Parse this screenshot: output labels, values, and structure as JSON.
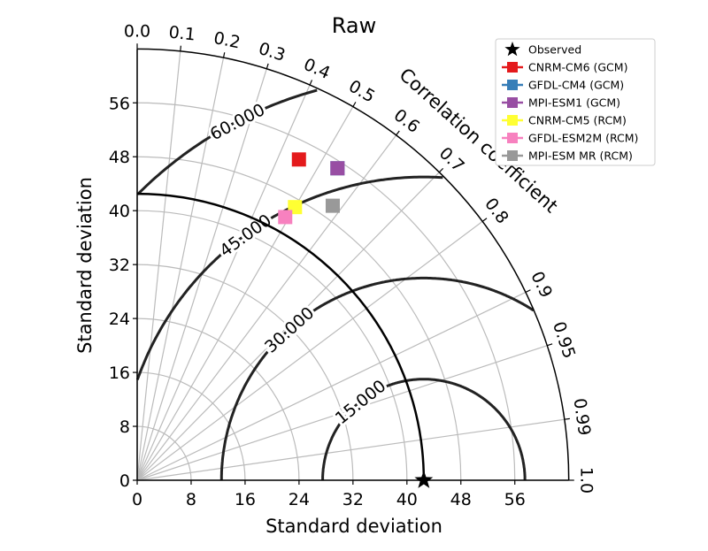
{
  "chart_data": {
    "type": "scatter",
    "subtype": "taylor-diagram",
    "title": "Raw",
    "xlabel": "Standard deviation",
    "ylabel": "Standard deviation",
    "corr_label": "Correlation coefficient",
    "std_range": [
      0,
      64
    ],
    "std_ticks": [
      "0",
      "8",
      "16",
      "24",
      "32",
      "40",
      "48",
      "56"
    ],
    "corr_ticks": [
      {
        "v": 0.0,
        "label": "0.0"
      },
      {
        "v": 0.1,
        "label": "0.1"
      },
      {
        "v": 0.2,
        "label": "0.2"
      },
      {
        "v": 0.3,
        "label": "0.3"
      },
      {
        "v": 0.4,
        "label": "0.4"
      },
      {
        "v": 0.5,
        "label": "0.5"
      },
      {
        "v": 0.6,
        "label": "0.6"
      },
      {
        "v": 0.7,
        "label": "0.7"
      },
      {
        "v": 0.8,
        "label": "0.8"
      },
      {
        "v": 0.9,
        "label": "0.9"
      },
      {
        "v": 0.95,
        "label": "0.95"
      },
      {
        "v": 0.99,
        "label": "0.99"
      },
      {
        "v": 1.0,
        "label": "1.0"
      }
    ],
    "reference": {
      "name": "Observed",
      "std": 42.5,
      "color": "#000000"
    },
    "rms_contours": [
      {
        "value": 15,
        "label": "15.000"
      },
      {
        "value": 30,
        "label": "30.000"
      },
      {
        "value": 45,
        "label": "45.000"
      },
      {
        "value": 60,
        "label": "60.000"
      }
    ],
    "grid": true,
    "legend_position": "top-right",
    "series": [
      {
        "name": "CNRM-CM6 (GCM)",
        "color": "#e41a1c",
        "std": 53.3,
        "corr": 0.45
      },
      {
        "name": "GFDL-CM4 (GCM)",
        "color": "#377eb8",
        "std": 55.0,
        "corr": 0.54
      },
      {
        "name": "MPI-ESM1 (GCM)",
        "color": "#984ea3",
        "std": 55.0,
        "corr": 0.54
      },
      {
        "name": "CNRM-CM5 (RCM)",
        "color": "#ffff33",
        "std": 46.8,
        "corr": 0.5
      },
      {
        "name": "GFDL-ESM2M (RCM)",
        "color": "#f781bf",
        "std": 44.8,
        "corr": 0.49
      },
      {
        "name": "MPI-ESM MR (RCM)",
        "color": "#999999",
        "std": 50.0,
        "corr": 0.58
      }
    ]
  }
}
